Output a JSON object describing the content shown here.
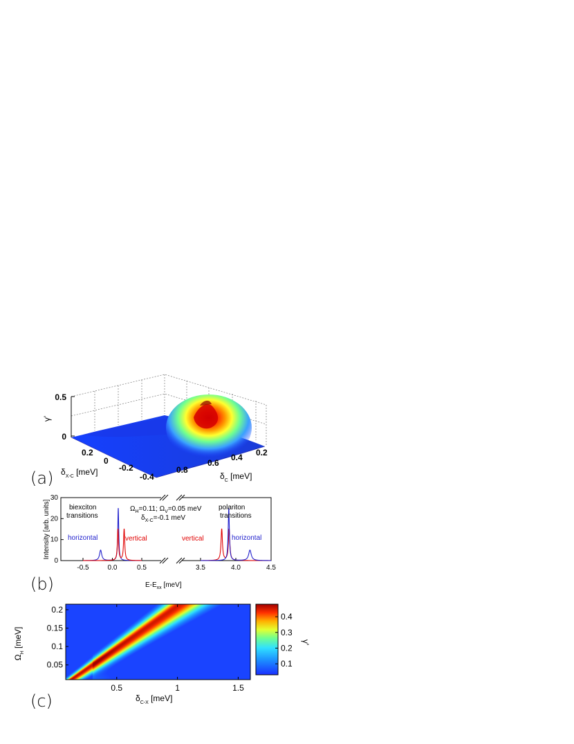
{
  "panels": {
    "a": "(a)",
    "b": "(b)",
    "c": "(c)"
  },
  "chart_data": [
    {
      "panel": "a",
      "type": "surface3d",
      "z_label": "γ'",
      "z_ticks": [
        "0",
        "0.5"
      ],
      "x_label_main": "δ",
      "x_label_sub": "X-C",
      "x_label_unit": " [meV]",
      "x_ticks": [
        "0.2",
        "0",
        "-0.2",
        "-0.4"
      ],
      "y_label_main": "δ",
      "y_label_sub": "C",
      "y_label_unit": " [meV]",
      "y_ticks": [
        "0.8",
        "0.6",
        "0.4",
        "0.2"
      ],
      "peak_value": 0.48,
      "peak_at": {
        "delta_C": 0.45,
        "delta_XC": -0.1
      },
      "colors": {
        "low": "#1a3cff",
        "mid": "#6effa0",
        "high": "#e00000"
      }
    },
    {
      "panel": "b",
      "type": "line",
      "ylabel": "Intensity [arb. units]",
      "xlabel_main": "E-E",
      "xlabel_sub": "xx",
      "xlabel_unit": " [meV]",
      "ylim": [
        0,
        30
      ],
      "y_ticks": [
        "0",
        "10",
        "20",
        "30"
      ],
      "x_ticks_left": [
        "-0.5",
        "0.0",
        "0.5"
      ],
      "x_ticks_right": [
        "3.5",
        "4.0",
        "4.5"
      ],
      "annotations": {
        "left_title_1": "biexciton",
        "left_title_2": "transitions",
        "right_title_1": "polariton",
        "right_title_2": "transitions",
        "params_1a": "Ω",
        "params_1b": "H",
        "params_1c": "=0.11; Ω",
        "params_1d": "V",
        "params_1e": "=0.05 meV",
        "params_2a": "δ",
        "params_2b": "X-C",
        "params_2c": "=-0.1 meV",
        "left_horizontal": "horizontal",
        "left_vertical": "vertical",
        "right_vertical": "vertical",
        "right_horizontal": "horizontal"
      },
      "series": [
        {
          "name": "horizontal",
          "color": "#1f1fcc",
          "segment": "left",
          "peaks": [
            {
              "x": -0.2,
              "height": 5,
              "width": 0.022
            },
            {
              "x": 0.1,
              "height": 25,
              "width": 0.01
            }
          ]
        },
        {
          "name": "vertical",
          "color": "#e00000",
          "segment": "left",
          "peaks": [
            {
              "x": 0.095,
              "height": 15,
              "width": 0.012
            },
            {
              "x": 0.2,
              "height": 15,
              "width": 0.012
            }
          ]
        },
        {
          "name": "vertical",
          "color": "#e00000",
          "segment": "right",
          "peaks": [
            {
              "x": 3.8,
              "height": 15,
              "width": 0.012
            },
            {
              "x": 3.905,
              "height": 15,
              "width": 0.012
            }
          ]
        },
        {
          "name": "horizontal",
          "color": "#1f1fcc",
          "segment": "right",
          "peaks": [
            {
              "x": 3.9,
              "height": 25,
              "width": 0.01
            },
            {
              "x": 4.2,
              "height": 5,
              "width": 0.022
            }
          ]
        }
      ]
    },
    {
      "panel": "c",
      "type": "heatmap",
      "xlabel_main": "δ",
      "xlabel_sub": "C-X",
      "xlabel_unit": "  [meV]",
      "ylabel_main": "Ω",
      "ylabel_sub": "H",
      "ylabel_unit": " [meV]",
      "xlim": [
        0.08,
        1.6
      ],
      "ylim": [
        0.01,
        0.215
      ],
      "x_ticks": [
        0.5,
        1,
        1.5
      ],
      "x_tick_labels": [
        "0.5",
        "1",
        "1.5"
      ],
      "y_ticks": [
        0.05,
        0.1,
        0.15,
        0.2
      ],
      "y_tick_labels": [
        "0.05",
        "0.1",
        "0.15",
        "0.2"
      ],
      "colorbar_label": "γ'",
      "colorbar_ticks": [
        0.1,
        0.2,
        0.3,
        0.4
      ],
      "colorbar_tick_labels": [
        "0.1",
        "0.2",
        "0.3",
        "0.4"
      ],
      "colorbar_range": [
        0.03,
        0.48
      ],
      "ridge": "max γ' ≈ 0.48 along δ_C-X ≈ 0.1 + 4.4·Ω_H"
    }
  ]
}
